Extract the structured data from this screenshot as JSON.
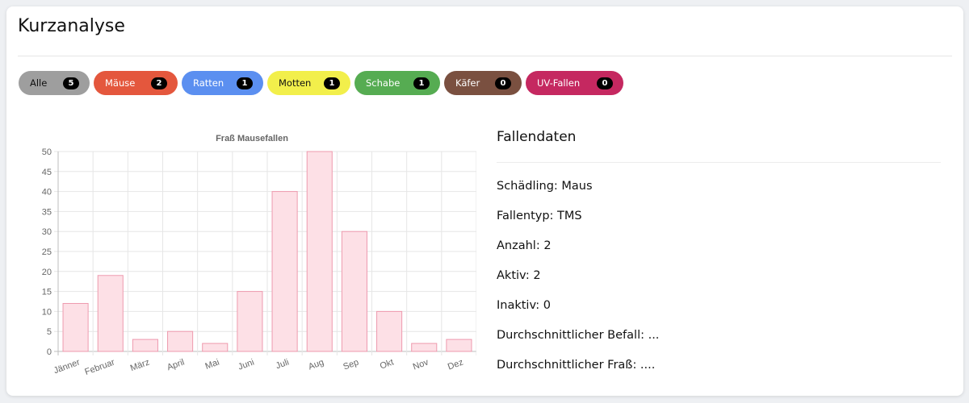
{
  "panel": {
    "title": "Kurzanalyse"
  },
  "filters": [
    {
      "label": "Alle",
      "count": "5",
      "bg": "#9e9e9e",
      "fg": "#111111"
    },
    {
      "label": "Mäuse",
      "count": "2",
      "bg": "#e4573d",
      "fg": "#ffffff"
    },
    {
      "label": "Ratten",
      "count": "1",
      "bg": "#5b8ff0",
      "fg": "#ffffff"
    },
    {
      "label": "Motten",
      "count": "1",
      "bg": "#f2ef4b",
      "fg": "#111111"
    },
    {
      "label": "Schabe",
      "count": "1",
      "bg": "#56ac52",
      "fg": "#ffffff"
    },
    {
      "label": "Käfer",
      "count": "0",
      "bg": "#7a5040",
      "fg": "#ffffff"
    },
    {
      "label": "UV-Fallen",
      "count": "0",
      "bg": "#c52860",
      "fg": "#ffffff"
    }
  ],
  "chart_data": {
    "type": "bar",
    "title": "Fraß Mausefallen",
    "categories": [
      "Jänner",
      "Februar",
      "März",
      "April",
      "Mai",
      "Juni",
      "Juli",
      "Aug",
      "Sep",
      "Okt",
      "Nov",
      "Dez"
    ],
    "values": [
      12,
      19,
      3,
      5,
      2,
      15,
      40,
      50,
      30,
      10,
      2,
      3
    ],
    "ylim": [
      0,
      50
    ],
    "yticks": [
      0,
      5,
      10,
      15,
      20,
      25,
      30,
      35,
      40,
      45,
      50
    ],
    "grid": true,
    "bar_fill": "#fde0e6",
    "bar_stroke": "#ee9aae"
  },
  "info": {
    "title": "Fallendaten",
    "rows": [
      "Schädling: Maus",
      "Fallentyp: TMS",
      "Anzahl: 2",
      "Aktiv: 2",
      "Inaktiv: 0",
      "Durchschnittlicher Befall: ...",
      "Durchschnittlicher Fraß: ...."
    ]
  }
}
